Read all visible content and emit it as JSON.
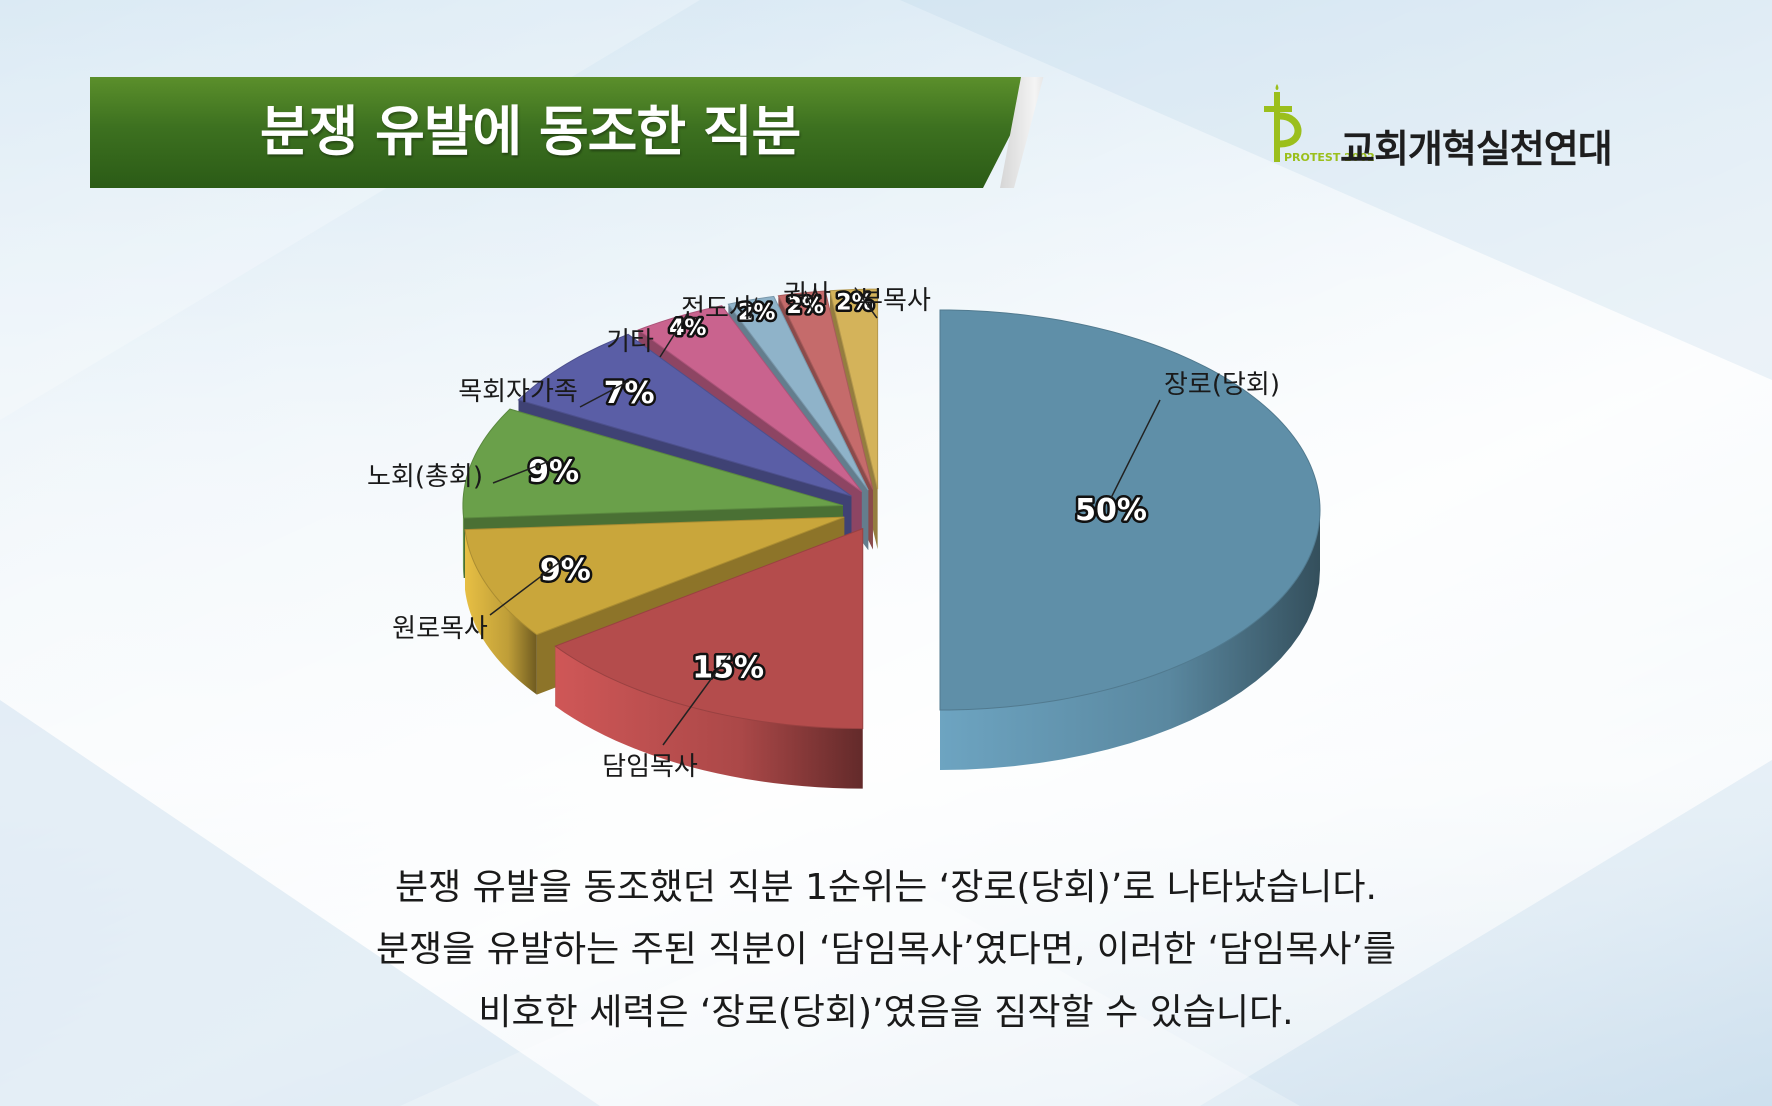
{
  "header": {
    "title": "분쟁 유발에 동조한 직분"
  },
  "logo": {
    "name": "교회개혁실천연대",
    "mark_text": "PROTEST 2002"
  },
  "chart_data": {
    "type": "pie",
    "style": "3d-exploded",
    "title": "",
    "slices": [
      {
        "label": "장로(당회)",
        "value": 50,
        "display": "50%",
        "color": "#5f8fa8"
      },
      {
        "label": "담임목사",
        "value": 15,
        "display": "15%",
        "color": "#b44c4c"
      },
      {
        "label": "원로목사",
        "value": 9,
        "display": "9%",
        "color": "#c9a63b"
      },
      {
        "label": "노회(총회)",
        "value": 9,
        "display": "9%",
        "color": "#6aa04a"
      },
      {
        "label": "목회자가족",
        "value": 7,
        "display": "7%",
        "color": "#5a5ea6"
      },
      {
        "label": "기타",
        "value": 4,
        "display": "4%",
        "color": "#c9638e"
      },
      {
        "label": "전도사",
        "value": 2,
        "display": "2%",
        "color": "#8fb3c9"
      },
      {
        "label": "권사",
        "value": 2,
        "display": "2%",
        "color": "#c56b6b"
      },
      {
        "label": "부목사",
        "value": 2,
        "display": "2%",
        "color": "#d4b35a"
      }
    ]
  },
  "caption": {
    "line1": "분쟁 유발을 동조했던 직분 1순위는 ‘장로(당회)’로 나타났습니다.",
    "line2": "분쟁을 유발하는 주된 직분이 ‘담임목사’였다면, 이러한 ‘담임목사’를",
    "line3": "비호한 세력은 ‘장로(당회)’였음을 짐작할 수 있습니다."
  }
}
